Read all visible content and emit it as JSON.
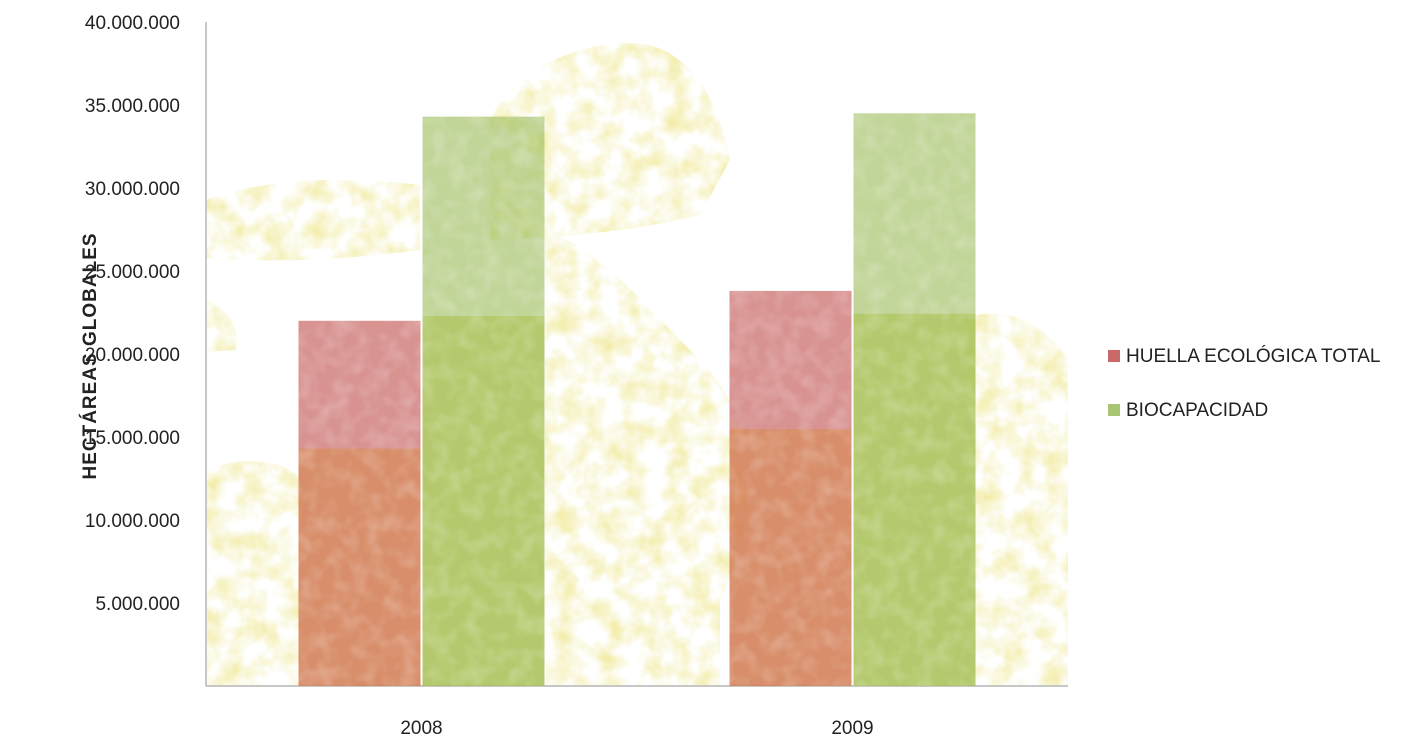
{
  "chart_data": {
    "type": "bar",
    "title": "",
    "xlabel": "",
    "ylabel": "HECTÁREAS  GLOBALES",
    "ylim": [
      0,
      40000000
    ],
    "yticks": [
      5000000,
      10000000,
      15000000,
      20000000,
      25000000,
      30000000,
      35000000,
      40000000
    ],
    "ytick_labels": [
      "5.000.000",
      "10.000.000",
      "15.000.000",
      "20.000.000",
      "25.000.000",
      "30.000.000",
      "35.000.000",
      "40.000.000"
    ],
    "categories": [
      "2008",
      "2009"
    ],
    "series": [
      {
        "name": "HUELLA ECOLÓGICA  TOTAL",
        "color": "#c0504d",
        "values": [
          22000000,
          23800000
        ]
      },
      {
        "name": "BIOCAPACIDAD",
        "color": "#9bbb59",
        "values": [
          34300000,
          34500000
        ]
      }
    ],
    "grid": false,
    "legend_position": "right",
    "background": "photo-texture"
  }
}
